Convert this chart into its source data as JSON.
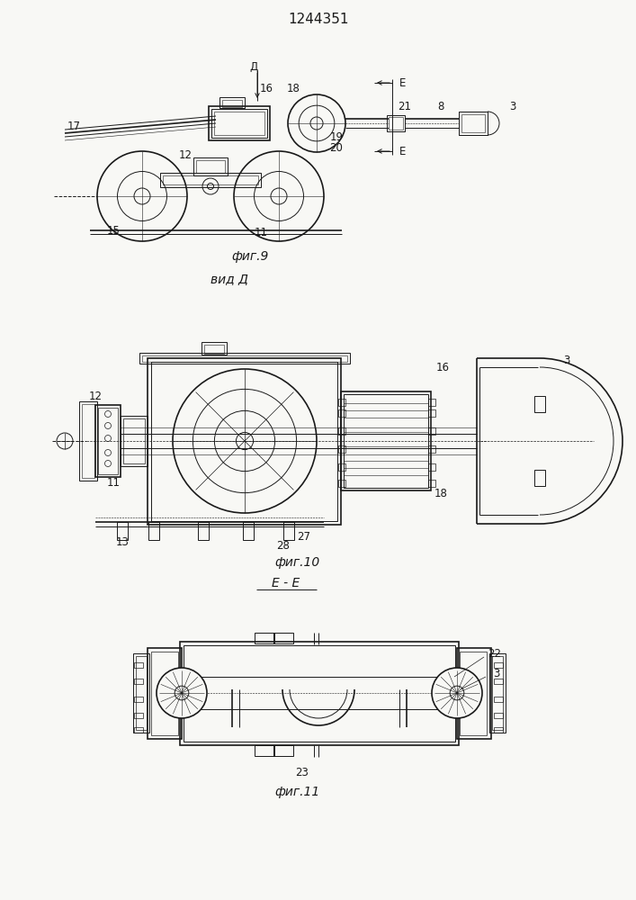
{
  "title": "1244351",
  "background_color": "#f8f8f5",
  "line_color": "#1a1a1a",
  "fig9_caption": "фиг.9",
  "fig10_caption": "фиг.10",
  "fig11_caption": "фиг.11",
  "vid_d_label": "вид Д",
  "ee_label": "Е - Е",
  "lw": 0.7,
  "lw2": 1.2,
  "lw3": 1.6
}
